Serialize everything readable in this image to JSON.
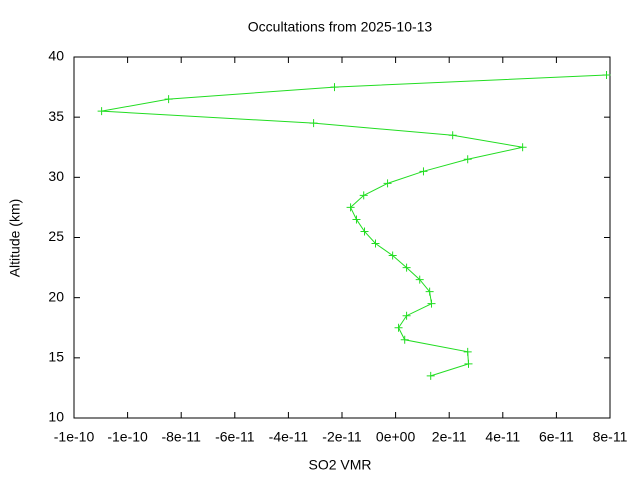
{
  "chart_data": {
    "type": "line",
    "title": "Occultations from 2025-10-13",
    "x_label": "SO2 VMR",
    "y_label": "Altitude (km)",
    "series": [
      {
        "color": "#22dd22",
        "x": [
          1.31e-11,
          2.72e-11,
          2.69e-11,
          3.4e-12,
          1.1e-12,
          4.1e-12,
          1.34e-11,
          1.27e-11,
          9e-12,
          4.1e-12,
          -1.1e-12,
          -7.5e-12,
          -1.16e-11,
          -1.46e-11,
          -1.68e-11,
          -1.19e-11,
          -3e-12,
          1.04e-11,
          2.69e-11,
          4.74e-11,
          2.13e-11,
          -3.06e-11,
          -1.097e-10,
          -8.47e-11,
          -2.28e-11,
          7.87e-11
        ],
        "values": [
          13.5,
          14.5,
          15.5,
          16.5,
          17.5,
          18.5,
          19.5,
          20.5,
          21.5,
          22.5,
          23.5,
          24.5,
          25.5,
          26.5,
          27.5,
          28.5,
          29.5,
          30.5,
          31.5,
          32.5,
          33.5,
          34.5,
          35.5,
          36.5,
          37.5,
          38.5
        ]
      }
    ],
    "xlim": [
      -1.2e-10,
      8e-11
    ],
    "xticks": [
      {
        "value": -1.2e-10,
        "label": "-1e-10"
      },
      {
        "value": -1e-10,
        "label": "-1e-10"
      },
      {
        "value": -8e-11,
        "label": "-8e-11"
      },
      {
        "value": -6e-11,
        "label": "-6e-11"
      },
      {
        "value": -4e-11,
        "label": "-4e-11"
      },
      {
        "value": -2e-11,
        "label": "-2e-11"
      },
      {
        "value": 0,
        "label": "0e+00"
      },
      {
        "value": 2e-11,
        "label": "2e-11"
      },
      {
        "value": 4e-11,
        "label": "4e-11"
      },
      {
        "value": 6e-11,
        "label": "6e-11"
      },
      {
        "value": 8e-11,
        "label": "8e-11"
      }
    ],
    "ylim": [
      10,
      40
    ],
    "yticks": [
      10,
      15,
      20,
      25,
      30,
      35,
      40
    ],
    "grid": false
  }
}
